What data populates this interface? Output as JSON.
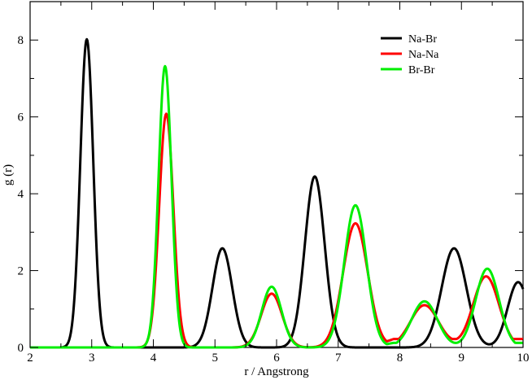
{
  "chart_data": {
    "type": "line",
    "title": "",
    "xlabel": "r / Angstrong",
    "ylabel": "g (r)",
    "xlim": [
      2,
      10
    ],
    "ylim": [
      0,
      9
    ],
    "xticks": [
      2,
      3,
      4,
      5,
      6,
      7,
      8,
      9,
      10
    ],
    "yticks": [
      0,
      2,
      4,
      6,
      8
    ],
    "grid": false,
    "legend_position": "top-right",
    "series": [
      {
        "name": "Na-Br",
        "color": "#000000",
        "peaks": [
          {
            "center": 2.92,
            "height": 8.02,
            "width": 0.105
          },
          {
            "center": 5.12,
            "height": 2.58,
            "width": 0.16
          },
          {
            "center": 6.62,
            "height": 4.45,
            "width": 0.16
          },
          {
            "center": 8.88,
            "height": 2.58,
            "width": 0.2
          },
          {
            "center": 9.92,
            "height": 1.7,
            "width": 0.17
          }
        ]
      },
      {
        "name": "Na-Na",
        "color": "#ff0000",
        "peaks": [
          {
            "center": 4.21,
            "height": 6.08,
            "width": 0.115
          },
          {
            "center": 5.92,
            "height": 1.4,
            "width": 0.17
          },
          {
            "center": 7.28,
            "height": 3.23,
            "width": 0.2
          },
          {
            "center": 8.4,
            "height": 1.1,
            "width": 0.23
          },
          {
            "center": 9.4,
            "height": 1.85,
            "width": 0.21
          }
        ],
        "baseline_after": 7.5,
        "baseline_value": 0.22
      },
      {
        "name": "Br-Br",
        "color": "#00ee00",
        "peaks": [
          {
            "center": 4.19,
            "height": 7.32,
            "width": 0.105
          },
          {
            "center": 5.92,
            "height": 1.58,
            "width": 0.16
          },
          {
            "center": 7.28,
            "height": 3.7,
            "width": 0.18
          },
          {
            "center": 8.4,
            "height": 1.2,
            "width": 0.21
          },
          {
            "center": 9.42,
            "height": 2.05,
            "width": 0.19
          }
        ],
        "baseline_after": 7.5,
        "baseline_value": 0.12
      }
    ]
  }
}
